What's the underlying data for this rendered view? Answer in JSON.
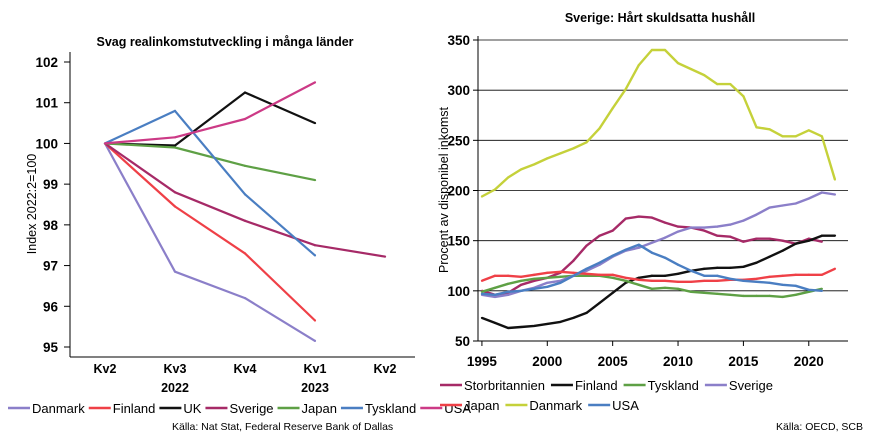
{
  "chart_data": [
    {
      "type": "line",
      "title": "Svag realinkomstutveckling i många länder",
      "ylabel": "Index 2022:2=100",
      "xlabel": "",
      "ylim": [
        95,
        102
      ],
      "yticks": [
        95,
        96,
        97,
        98,
        99,
        100,
        101,
        102
      ],
      "grid": false,
      "categories": [
        "Kv2",
        "Kv3",
        "Kv4",
        "Kv1",
        "Kv2"
      ],
      "year_labels": [
        {
          "label": "2022",
          "category_index": 1
        },
        {
          "label": "2023",
          "category_index": 3
        }
      ],
      "legend_position": "bottom",
      "source": "Källa: Nat Stat, Federal Reserve Bank of Dallas",
      "series": [
        {
          "name": "Danmark",
          "color": "#8b7fc9",
          "values": [
            100,
            96.85,
            96.2,
            95.15,
            null
          ]
        },
        {
          "name": "Finland",
          "color": "#ef4047",
          "values": [
            100,
            98.45,
            97.3,
            95.65,
            null
          ]
        },
        {
          "name": "UK",
          "color": "#111111",
          "values": [
            100,
            99.95,
            101.25,
            100.5,
            null
          ]
        },
        {
          "name": "Sverige",
          "color": "#a62a67",
          "values": [
            100,
            98.8,
            98.1,
            97.5,
            97.22
          ]
        },
        {
          "name": "Japan",
          "color": "#5ea045",
          "values": [
            100,
            99.9,
            99.45,
            99.1,
            null
          ]
        },
        {
          "name": "Tyskland",
          "color": "#4a7ec2",
          "values": [
            100,
            100.8,
            98.75,
            97.25,
            null
          ]
        },
        {
          "name": "USA",
          "color": "#cc3a86",
          "values": [
            100,
            100.15,
            100.6,
            101.5,
            null
          ]
        }
      ]
    },
    {
      "type": "line",
      "title": "Sverige: Hårt skuldsatta hushåll",
      "ylabel": "Procent av disponibel inkomst",
      "xlabel": "",
      "xlim": [
        1994.7,
        2023
      ],
      "xticks": [
        1995,
        2000,
        2005,
        2010,
        2015,
        2020
      ],
      "ylim": [
        50,
        350
      ],
      "yticks": [
        50,
        100,
        150,
        200,
        250,
        300,
        350
      ],
      "grid": true,
      "legend_position": "bottom",
      "source": "Källa: OECD, SCB",
      "series": [
        {
          "name": "Storbritannien",
          "color": "#a62a67",
          "x": [
            1995,
            1996,
            1997,
            1998,
            1999,
            2000,
            2001,
            2002,
            2003,
            2004,
            2005,
            2006,
            2007,
            2008,
            2009,
            2010,
            2011,
            2012,
            2013,
            2014,
            2015,
            2016,
            2017,
            2018,
            2019,
            2020,
            2021
          ],
          "values": [
            100,
            96,
            98,
            106,
            110,
            113,
            118,
            130,
            145,
            155,
            160,
            172,
            174,
            173,
            168,
            164,
            163,
            160,
            155,
            154,
            149,
            152,
            152,
            150,
            147,
            152,
            149
          ]
        },
        {
          "name": "Finland",
          "color": "#111111",
          "x": [
            1995,
            1996,
            1997,
            1998,
            1999,
            2000,
            2001,
            2002,
            2003,
            2004,
            2005,
            2006,
            2007,
            2008,
            2009,
            2010,
            2011,
            2012,
            2013,
            2014,
            2015,
            2016,
            2017,
            2018,
            2019,
            2020,
            2021,
            2022
          ],
          "values": [
            73,
            68,
            63,
            64,
            65,
            67,
            69,
            73,
            78,
            88,
            98,
            108,
            113,
            115,
            115,
            117,
            120,
            122,
            123,
            123,
            124,
            128,
            134,
            140,
            147,
            150,
            155,
            155
          ]
        },
        {
          "name": "Tyskland",
          "color": "#5ea045",
          "x": [
            1995,
            1996,
            1997,
            1998,
            1999,
            2000,
            2001,
            2002,
            2003,
            2004,
            2005,
            2006,
            2007,
            2008,
            2009,
            2010,
            2011,
            2012,
            2013,
            2014,
            2015,
            2016,
            2017,
            2018,
            2019,
            2020,
            2021
          ],
          "values": [
            99,
            103,
            107,
            110,
            112,
            113,
            114,
            115,
            115,
            115,
            113,
            110,
            106,
            102,
            103,
            102,
            99,
            98,
            97,
            96,
            95,
            95,
            95,
            94,
            96,
            99,
            102
          ]
        },
        {
          "name": "Sverige",
          "color": "#8b7fc9",
          "x": [
            1995,
            1996,
            1997,
            1998,
            1999,
            2000,
            2001,
            2002,
            2003,
            2004,
            2005,
            2006,
            2007,
            2008,
            2009,
            2010,
            2011,
            2012,
            2013,
            2014,
            2015,
            2016,
            2017,
            2018,
            2019,
            2020,
            2021,
            2022
          ],
          "values": [
            96,
            94,
            96,
            100,
            103,
            108,
            110,
            115,
            120,
            126,
            134,
            140,
            143,
            148,
            153,
            159,
            163,
            163,
            164,
            166,
            170,
            176,
            183,
            185,
            187,
            192,
            198,
            196
          ]
        },
        {
          "name": "Japan",
          "color": "#ef4047",
          "x": [
            1995,
            1996,
            1997,
            1998,
            1999,
            2000,
            2001,
            2002,
            2003,
            2004,
            2005,
            2006,
            2007,
            2008,
            2009,
            2010,
            2011,
            2012,
            2013,
            2014,
            2015,
            2016,
            2017,
            2018,
            2019,
            2020,
            2021,
            2022
          ],
          "values": [
            110,
            115,
            115,
            114,
            116,
            118,
            119,
            118,
            117,
            116,
            116,
            113,
            111,
            110,
            110,
            109,
            109,
            110,
            110,
            111,
            111,
            112,
            114,
            115,
            116,
            116,
            116,
            122
          ]
        },
        {
          "name": "Danmark",
          "color": "#c5d13a",
          "x": [
            1995,
            1996,
            1997,
            1998,
            1999,
            2000,
            2001,
            2002,
            2003,
            2004,
            2005,
            2006,
            2007,
            2008,
            2009,
            2010,
            2011,
            2012,
            2013,
            2014,
            2015,
            2016,
            2017,
            2018,
            2019,
            2020,
            2021,
            2022,
            2023
          ],
          "values": [
            194,
            201,
            213,
            221,
            226,
            232,
            237,
            242,
            248,
            262,
            282,
            301,
            325,
            340,
            340,
            327,
            321,
            315,
            306,
            306,
            294,
            263,
            261,
            254,
            254,
            260,
            254,
            211,
            null
          ]
        },
        {
          "name": "USA",
          "color": "#4a7ec2",
          "x": [
            1995,
            1996,
            1997,
            1998,
            1999,
            2000,
            2001,
            2002,
            2003,
            2004,
            2005,
            2006,
            2007,
            2008,
            2009,
            2010,
            2011,
            2012,
            2013,
            2014,
            2015,
            2016,
            2017,
            2018,
            2019,
            2020,
            2021
          ],
          "values": [
            97,
            96,
            99,
            100,
            102,
            104,
            108,
            115,
            122,
            128,
            135,
            141,
            146,
            138,
            133,
            126,
            120,
            115,
            115,
            112,
            110,
            109,
            108,
            106,
            105,
            101,
            100
          ]
        }
      ]
    }
  ]
}
